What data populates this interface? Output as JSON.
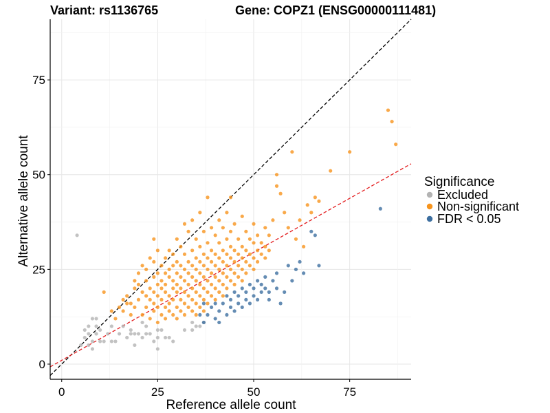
{
  "chart_data": {
    "type": "scatter",
    "title_left": "Variant: rs1136765",
    "title_right": "Gene: COPZ1 (ENSG00000111481)",
    "xlabel": "Reference allele count",
    "ylabel": "Alternative allele count",
    "xlim": [
      -3,
      91
    ],
    "ylim": [
      -4,
      91
    ],
    "x_ticks": [
      0,
      25,
      50,
      75
    ],
    "y_ticks": [
      0,
      25,
      50,
      75
    ],
    "grid": true,
    "legend": {
      "title": "Significance",
      "position": "right",
      "entries": [
        {
          "label": "Excluded",
          "color": "#b3b3b3"
        },
        {
          "label": "Non-significant",
          "color": "#f7941d"
        },
        {
          "label": "FDR < 0.05",
          "color": "#3d6fa0"
        }
      ]
    },
    "reference_lines": [
      {
        "name": "identity",
        "slope": 1.0,
        "intercept": 0,
        "color": "#000000",
        "dash": "dashed"
      },
      {
        "name": "fit",
        "slope": 0.57,
        "intercept": 1,
        "color": "#e31a1c",
        "dash": "dashed"
      }
    ],
    "series": [
      {
        "name": "Excluded",
        "color": "#b3b3b3",
        "points": [
          [
            4,
            34
          ],
          [
            5,
            5
          ],
          [
            6,
            7
          ],
          [
            6,
            9
          ],
          [
            7,
            5
          ],
          [
            7,
            8
          ],
          [
            7,
            10
          ],
          [
            8,
            4
          ],
          [
            8,
            6
          ],
          [
            8,
            12
          ],
          [
            9,
            8
          ],
          [
            9,
            10
          ],
          [
            9,
            12
          ],
          [
            10,
            6
          ],
          [
            10,
            9
          ],
          [
            11,
            6
          ],
          [
            12,
            8
          ],
          [
            13,
            6
          ],
          [
            13,
            10
          ],
          [
            14,
            6
          ],
          [
            15,
            8
          ],
          [
            16,
            10
          ],
          [
            17,
            7
          ],
          [
            18,
            8
          ],
          [
            18,
            9
          ],
          [
            19,
            5
          ],
          [
            19,
            8
          ],
          [
            20,
            8
          ],
          [
            21,
            7
          ],
          [
            21,
            11
          ],
          [
            22,
            8
          ],
          [
            22,
            10
          ],
          [
            23,
            8
          ],
          [
            24,
            6
          ],
          [
            25,
            4
          ],
          [
            25,
            7
          ],
          [
            25,
            9
          ],
          [
            26,
            9
          ],
          [
            27,
            7
          ],
          [
            28,
            7
          ],
          [
            29,
            6
          ],
          [
            32,
            9
          ],
          [
            34,
            9
          ],
          [
            34,
            11
          ],
          [
            35,
            10
          ],
          [
            36,
            10
          ],
          [
            37,
            11
          ]
        ]
      },
      {
        "name": "Non-significant",
        "color": "#f7941d",
        "points": [
          [
            11,
            19
          ],
          [
            13,
            14
          ],
          [
            14,
            12
          ],
          [
            15,
            15
          ],
          [
            16,
            14
          ],
          [
            16,
            17
          ],
          [
            17,
            16
          ],
          [
            17,
            18
          ],
          [
            18,
            13
          ],
          [
            18,
            16
          ],
          [
            19,
            20
          ],
          [
            19,
            22
          ],
          [
            19,
            15
          ],
          [
            20,
            17
          ],
          [
            20,
            21
          ],
          [
            20,
            24
          ],
          [
            21,
            13
          ],
          [
            21,
            19
          ],
          [
            21,
            26
          ],
          [
            22,
            15
          ],
          [
            22,
            18
          ],
          [
            22,
            22
          ],
          [
            22,
            25
          ],
          [
            23,
            12
          ],
          [
            23,
            17
          ],
          [
            23,
            20
          ],
          [
            23,
            28
          ],
          [
            24,
            14
          ],
          [
            24,
            16
          ],
          [
            24,
            19
          ],
          [
            24,
            23
          ],
          [
            24,
            27
          ],
          [
            24,
            33
          ],
          [
            25,
            11
          ],
          [
            25,
            15
          ],
          [
            25,
            18
          ],
          [
            25,
            21
          ],
          [
            25,
            24
          ],
          [
            25,
            30
          ],
          [
            26,
            13
          ],
          [
            26,
            17
          ],
          [
            26,
            20
          ],
          [
            26,
            22
          ],
          [
            26,
            26
          ],
          [
            27,
            12
          ],
          [
            27,
            15
          ],
          [
            27,
            19
          ],
          [
            27,
            21
          ],
          [
            27,
            24
          ],
          [
            27,
            28
          ],
          [
            28,
            14
          ],
          [
            28,
            16
          ],
          [
            28,
            18
          ],
          [
            28,
            23
          ],
          [
            28,
            25
          ],
          [
            28,
            30
          ],
          [
            29,
            13
          ],
          [
            29,
            17
          ],
          [
            29,
            20
          ],
          [
            29,
            22
          ],
          [
            29,
            26
          ],
          [
            29,
            29
          ],
          [
            30,
            12
          ],
          [
            30,
            15
          ],
          [
            30,
            19
          ],
          [
            30,
            21
          ],
          [
            30,
            24
          ],
          [
            30,
            27
          ],
          [
            30,
            33
          ],
          [
            31,
            14
          ],
          [
            31,
            17
          ],
          [
            31,
            20
          ],
          [
            31,
            23
          ],
          [
            31,
            26
          ],
          [
            31,
            31
          ],
          [
            32,
            13
          ],
          [
            32,
            16
          ],
          [
            32,
            19
          ],
          [
            32,
            22
          ],
          [
            32,
            25
          ],
          [
            32,
            29
          ],
          [
            32,
            37
          ],
          [
            33,
            15
          ],
          [
            33,
            18
          ],
          [
            33,
            21
          ],
          [
            33,
            24
          ],
          [
            33,
            27
          ],
          [
            33,
            35
          ],
          [
            34,
            14
          ],
          [
            34,
            17
          ],
          [
            34,
            20
          ],
          [
            34,
            23
          ],
          [
            34,
            26
          ],
          [
            34,
            30
          ],
          [
            34,
            38
          ],
          [
            35,
            13
          ],
          [
            35,
            16
          ],
          [
            35,
            19
          ],
          [
            35,
            22
          ],
          [
            35,
            25
          ],
          [
            35,
            28
          ],
          [
            35,
            33
          ],
          [
            36,
            15
          ],
          [
            36,
            18
          ],
          [
            36,
            21
          ],
          [
            36,
            24
          ],
          [
            36,
            27
          ],
          [
            36,
            31
          ],
          [
            36,
            40
          ],
          [
            37,
            14
          ],
          [
            37,
            17
          ],
          [
            37,
            20
          ],
          [
            37,
            23
          ],
          [
            37,
            26
          ],
          [
            37,
            29
          ],
          [
            37,
            35
          ],
          [
            38,
            16
          ],
          [
            38,
            19
          ],
          [
            38,
            22
          ],
          [
            38,
            25
          ],
          [
            38,
            28
          ],
          [
            38,
            32
          ],
          [
            38,
            44
          ],
          [
            39,
            18
          ],
          [
            39,
            21
          ],
          [
            39,
            24
          ],
          [
            39,
            27
          ],
          [
            39,
            30
          ],
          [
            39,
            36
          ],
          [
            40,
            17
          ],
          [
            40,
            20
          ],
          [
            40,
            23
          ],
          [
            40,
            26
          ],
          [
            40,
            29
          ],
          [
            40,
            34
          ],
          [
            41,
            19
          ],
          [
            41,
            22
          ],
          [
            41,
            25
          ],
          [
            41,
            28
          ],
          [
            41,
            32
          ],
          [
            41,
            38
          ],
          [
            42,
            18
          ],
          [
            42,
            21
          ],
          [
            42,
            24
          ],
          [
            42,
            27
          ],
          [
            42,
            30
          ],
          [
            42,
            36
          ],
          [
            43,
            20
          ],
          [
            43,
            23
          ],
          [
            43,
            26
          ],
          [
            43,
            29
          ],
          [
            43,
            33
          ],
          [
            43,
            40
          ],
          [
            44,
            22
          ],
          [
            44,
            25
          ],
          [
            44,
            28
          ],
          [
            44,
            31
          ],
          [
            44,
            35
          ],
          [
            44,
            44
          ],
          [
            45,
            21
          ],
          [
            45,
            24
          ],
          [
            45,
            27
          ],
          [
            45,
            30
          ],
          [
            45,
            37
          ],
          [
            46,
            23
          ],
          [
            46,
            26
          ],
          [
            46,
            29
          ],
          [
            46,
            33
          ],
          [
            47,
            22
          ],
          [
            47,
            25
          ],
          [
            47,
            28
          ],
          [
            47,
            31
          ],
          [
            47,
            39
          ],
          [
            48,
            24
          ],
          [
            48,
            27
          ],
          [
            48,
            30
          ],
          [
            48,
            35
          ],
          [
            49,
            26
          ],
          [
            49,
            29
          ],
          [
            49,
            33
          ],
          [
            50,
            25
          ],
          [
            50,
            28
          ],
          [
            50,
            32
          ],
          [
            50,
            37
          ],
          [
            51,
            27
          ],
          [
            51,
            30
          ],
          [
            51,
            34
          ],
          [
            52,
            29
          ],
          [
            52,
            32
          ],
          [
            53,
            28
          ],
          [
            53,
            31
          ],
          [
            53,
            36
          ],
          [
            54,
            30
          ],
          [
            54,
            34
          ],
          [
            55,
            38
          ],
          [
            56,
            50
          ],
          [
            56,
            47
          ],
          [
            57,
            45
          ],
          [
            58,
            40
          ],
          [
            59,
            36
          ],
          [
            60,
            56
          ],
          [
            61,
            33
          ],
          [
            62,
            38
          ],
          [
            63,
            31
          ],
          [
            64,
            42
          ],
          [
            65,
            40
          ],
          [
            66,
            44
          ],
          [
            67,
            43
          ],
          [
            70,
            51
          ],
          [
            75,
            56
          ],
          [
            85,
            67
          ],
          [
            86,
            64
          ],
          [
            87,
            58
          ]
        ]
      },
      {
        "name": "FDR < 0.05",
        "color": "#3d6fa0",
        "points": [
          [
            36,
            13
          ],
          [
            37,
            11
          ],
          [
            37,
            16
          ],
          [
            38,
            13
          ],
          [
            39,
            15
          ],
          [
            40,
            12
          ],
          [
            40,
            16
          ],
          [
            41,
            11
          ],
          [
            41,
            14
          ],
          [
            42,
            16
          ],
          [
            43,
            13
          ],
          [
            43,
            18
          ],
          [
            44,
            15
          ],
          [
            44,
            17
          ],
          [
            45,
            14
          ],
          [
            45,
            19
          ],
          [
            46,
            16
          ],
          [
            46,
            18
          ],
          [
            47,
            15
          ],
          [
            47,
            20
          ],
          [
            48,
            17
          ],
          [
            48,
            19
          ],
          [
            49,
            16
          ],
          [
            49,
            21
          ],
          [
            50,
            18
          ],
          [
            50,
            20
          ],
          [
            51,
            17
          ],
          [
            51,
            22
          ],
          [
            52,
            19
          ],
          [
            52,
            21
          ],
          [
            53,
            20
          ],
          [
            53,
            23
          ],
          [
            54,
            17
          ],
          [
            54,
            19
          ],
          [
            55,
            22
          ],
          [
            56,
            24
          ],
          [
            56,
            20
          ],
          [
            57,
            16
          ],
          [
            58,
            19
          ],
          [
            59,
            26
          ],
          [
            60,
            22
          ],
          [
            61,
            25
          ],
          [
            62,
            27
          ],
          [
            63,
            24
          ],
          [
            65,
            35
          ],
          [
            66,
            34
          ],
          [
            67,
            26
          ],
          [
            83,
            41
          ]
        ]
      }
    ]
  }
}
